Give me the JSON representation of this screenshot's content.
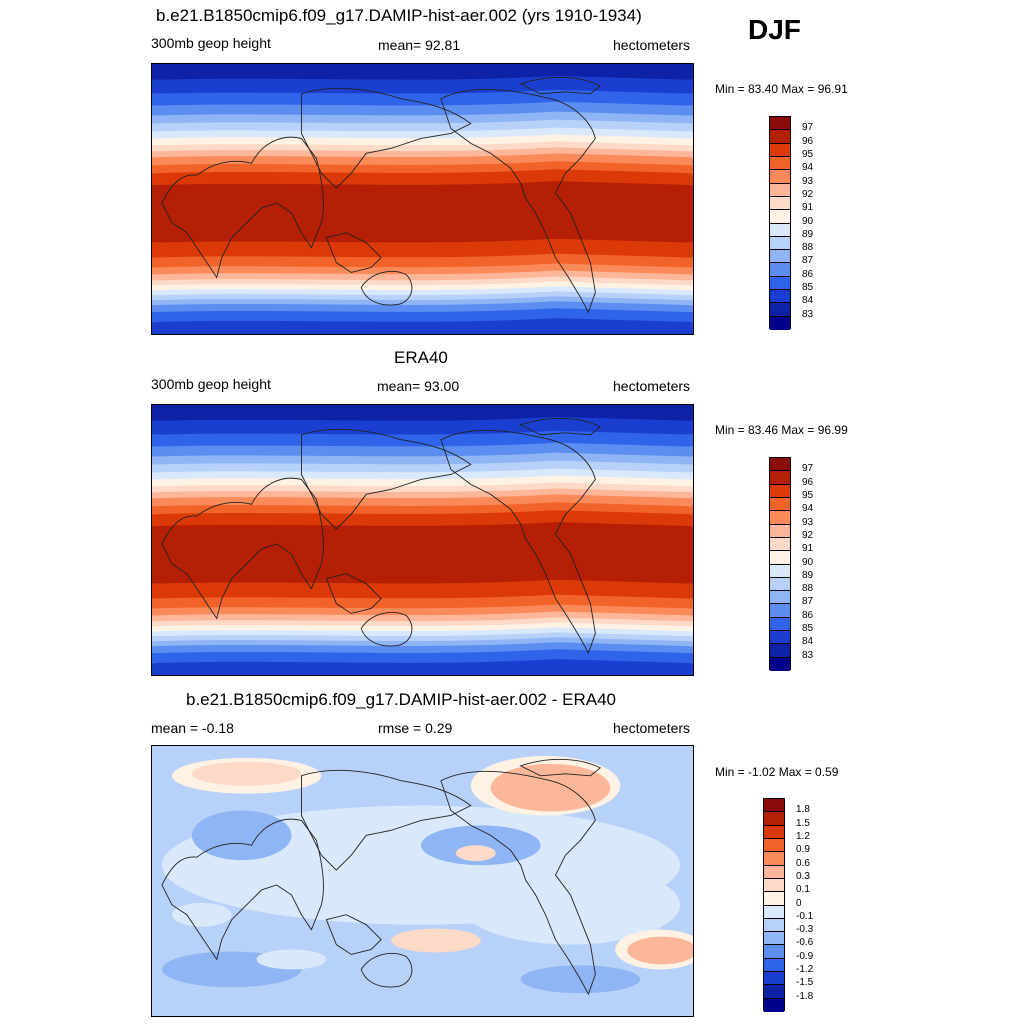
{
  "season": "DJF",
  "panels": [
    {
      "title": "b.e21.B1850cmip6.f09_g17.DAMIP-hist-aer.002 (yrs 1910-1934)",
      "left_label": "300mb geop height",
      "center_label": "mean=  92.81",
      "units": "hectometers",
      "minmax": "Min =  83.40 Max =  96.91",
      "colorbar": {
        "labels": [
          "97",
          "96",
          "95",
          "94",
          "93",
          "92",
          "91",
          "90",
          "89",
          "88",
          "87",
          "86",
          "85",
          "84",
          "83"
        ],
        "colors": [
          "#8b0a0a",
          "#b51f05",
          "#db3a08",
          "#f26329",
          "#fb8a5a",
          "#fcb79b",
          "#fdd9c7",
          "#fdf2e4",
          "#d9e8fa",
          "#b8d1f8",
          "#8fb5f5",
          "#5b8ef0",
          "#2f63ea",
          "#1a3fd0",
          "#0e22a8",
          "#00008b"
        ]
      },
      "map_kind": "height"
    },
    {
      "title": "ERA40",
      "left_label": "300mb geop height",
      "center_label": "mean=  93.00",
      "units": "hectometers",
      "minmax": "Min =  83.46 Max =  96.99",
      "colorbar": {
        "labels": [
          "97",
          "96",
          "95",
          "94",
          "93",
          "92",
          "91",
          "90",
          "89",
          "88",
          "87",
          "86",
          "85",
          "84",
          "83"
        ],
        "colors": [
          "#8b0a0a",
          "#b51f05",
          "#db3a08",
          "#f26329",
          "#fb8a5a",
          "#fcb79b",
          "#fdd9c7",
          "#fdf2e4",
          "#d9e8fa",
          "#b8d1f8",
          "#8fb5f5",
          "#5b8ef0",
          "#2f63ea",
          "#1a3fd0",
          "#0e22a8",
          "#00008b"
        ]
      },
      "map_kind": "height"
    },
    {
      "title": "b.e21.B1850cmip6.f09_g17.DAMIP-hist-aer.002 - ERA40",
      "left_label": "mean =  -0.18",
      "center_label": "rmse =   0.29",
      "units": "hectometers",
      "minmax": "Min =  -1.02 Max =   0.59",
      "colorbar": {
        "labels": [
          "1.8",
          "1.5",
          "1.2",
          "0.9",
          "0.6",
          "0.3",
          "0.1",
          "0",
          "-0.1",
          "-0.3",
          "-0.6",
          "-0.9",
          "-1.2",
          "-1.5",
          "-1.8"
        ],
        "colors": [
          "#8b0a0a",
          "#b51f05",
          "#db3a08",
          "#f26329",
          "#fb8a5a",
          "#fcb79b",
          "#fdd9c7",
          "#fdf2e4",
          "#d9e8fa",
          "#b8d1f8",
          "#8fb5f5",
          "#5b8ef0",
          "#2f63ea",
          "#1a3fd0",
          "#0e22a8",
          "#00008b"
        ]
      },
      "map_kind": "diff"
    }
  ]
}
